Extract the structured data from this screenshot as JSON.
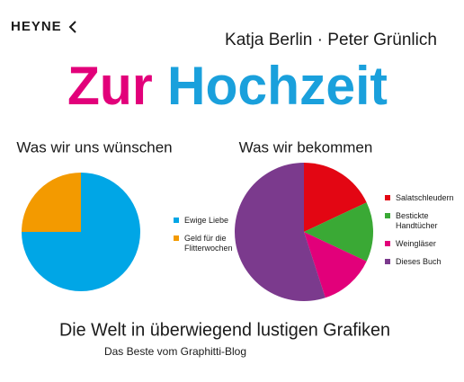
{
  "cover": {
    "publisher": "HEYNE",
    "authors": "Katja Berlin · Peter Grünlich",
    "title_first": "Zur",
    "title_second": "Hochzeit",
    "subtitle": "Die Welt in überwiegend lustigen Grafiken",
    "tagline": "Das Beste vom Graphitti-Blog"
  },
  "chart_data": [
    {
      "type": "pie",
      "title": "Was wir uns wünschen",
      "categories": [
        "Ewige Liebe",
        "Geld für die Flitterwochen"
      ],
      "values": [
        75,
        25
      ],
      "colors": [
        "#00a6e6",
        "#f39a00"
      ]
    },
    {
      "type": "pie",
      "title": "Was wir bekommen",
      "categories": [
        "Salatschleudern",
        "Bestickte Handtücher",
        "Weingläser",
        "Dieses Buch"
      ],
      "values": [
        18,
        14,
        13,
        55
      ],
      "colors": [
        "#e30613",
        "#3aa935",
        "#e2007a",
        "#7b3a8d"
      ]
    }
  ]
}
